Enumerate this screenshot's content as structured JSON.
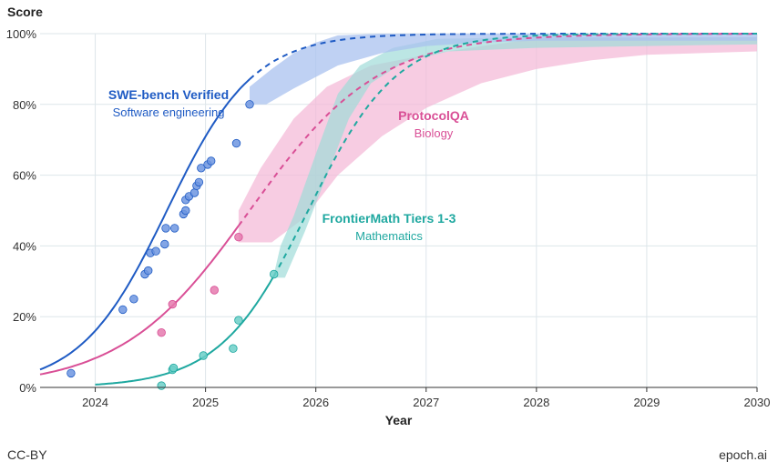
{
  "footer": {
    "license": "CC-BY",
    "source": "epoch.ai"
  },
  "chart_data": {
    "type": "line",
    "ylabel": "Score",
    "xlabel": "Year",
    "xlim": [
      2023.5,
      2030
    ],
    "ylim": [
      0,
      100
    ],
    "x_ticks": [
      2024,
      2025,
      2026,
      2027,
      2028,
      2029,
      2030
    ],
    "x_tick_labels": [
      "2024",
      "2025",
      "2026",
      "2027",
      "2028",
      "2029",
      "2030"
    ],
    "y_ticks": [
      0,
      20,
      40,
      60,
      80,
      100
    ],
    "y_tick_labels": [
      "0%",
      "20%",
      "40%",
      "60%",
      "80%",
      "100%"
    ],
    "grid": true,
    "series": [
      {
        "name": "SWE-bench Verified",
        "subtitle": "Software engineering",
        "color": "#1f5bc4",
        "point_color": "#6d95e0",
        "band_color": "#a9c2ef",
        "midpoint": 2024.65,
        "rate": 2.55,
        "fit_x": [
          2023.5,
          2025.4
        ],
        "projection_x": [
          2025.4,
          2030
        ],
        "points": [
          {
            "x": 2023.78,
            "y": 4
          },
          {
            "x": 2024.25,
            "y": 22
          },
          {
            "x": 2024.35,
            "y": 25
          },
          {
            "x": 2024.45,
            "y": 32
          },
          {
            "x": 2024.48,
            "y": 33
          },
          {
            "x": 2024.5,
            "y": 38
          },
          {
            "x": 2024.55,
            "y": 38.5
          },
          {
            "x": 2024.63,
            "y": 40.5
          },
          {
            "x": 2024.64,
            "y": 45
          },
          {
            "x": 2024.72,
            "y": 45
          },
          {
            "x": 2024.8,
            "y": 49
          },
          {
            "x": 2024.82,
            "y": 50
          },
          {
            "x": 2024.82,
            "y": 53
          },
          {
            "x": 2024.85,
            "y": 54
          },
          {
            "x": 2024.9,
            "y": 55
          },
          {
            "x": 2024.92,
            "y": 57
          },
          {
            "x": 2024.94,
            "y": 58
          },
          {
            "x": 2024.96,
            "y": 62
          },
          {
            "x": 2025.02,
            "y": 63
          },
          {
            "x": 2025.05,
            "y": 64
          },
          {
            "x": 2025.28,
            "y": 69
          },
          {
            "x": 2025.4,
            "y": 80
          }
        ],
        "band_lower": [
          [
            2025.4,
            80
          ],
          [
            2025.55,
            80
          ],
          [
            2025.8,
            84.5
          ],
          [
            2026.2,
            91
          ],
          [
            2026.6,
            94.5
          ],
          [
            2027,
            96.5
          ],
          [
            2027.5,
            97.5
          ],
          [
            2028,
            98
          ],
          [
            2029,
            98
          ],
          [
            2030,
            98
          ]
        ],
        "band_upper": [
          [
            2025.4,
            85
          ],
          [
            2025.6,
            90
          ],
          [
            2025.8,
            94.5
          ],
          [
            2026.0,
            97.5
          ],
          [
            2026.2,
            99.5
          ],
          [
            2026.6,
            100
          ],
          [
            2030,
            100
          ]
        ]
      },
      {
        "name": "ProtocolQA",
        "subtitle": "Biology",
        "color": "#d94f96",
        "point_color": "#e57aae",
        "band_color": "#f4b6d5",
        "midpoint": 2025.4,
        "rate": 1.72,
        "fit_x": [
          2023.5,
          2025.3
        ],
        "projection_x": [
          2025.3,
          2030
        ],
        "points": [
          {
            "x": 2024.6,
            "y": 15.5
          },
          {
            "x": 2024.7,
            "y": 23.5
          },
          {
            "x": 2025.08,
            "y": 27.5
          },
          {
            "x": 2025.3,
            "y": 42.5
          }
        ],
        "band_lower": [
          [
            2025.3,
            41
          ],
          [
            2025.6,
            41
          ],
          [
            2025.9,
            48
          ],
          [
            2026.2,
            60
          ],
          [
            2026.6,
            71
          ],
          [
            2027,
            79
          ],
          [
            2027.5,
            86
          ],
          [
            2028,
            90
          ],
          [
            2028.5,
            92.5
          ],
          [
            2029,
            94
          ],
          [
            2030,
            95
          ]
        ],
        "band_upper": [
          [
            2025.3,
            50
          ],
          [
            2025.5,
            62
          ],
          [
            2025.8,
            76
          ],
          [
            2026.1,
            85
          ],
          [
            2026.5,
            91
          ],
          [
            2027,
            94
          ],
          [
            2027.5,
            96.5
          ],
          [
            2028,
            98.5
          ],
          [
            2030,
            99
          ]
        ]
      },
      {
        "name": "FrontierMath Tiers 1-3",
        "subtitle": "Mathematics",
        "color": "#1fa8a0",
        "point_color": "#6ccfc8",
        "band_color": "#9fdcd8",
        "midpoint": 2025.93,
        "rate": 2.5,
        "fit_x": [
          2024.0,
          2025.62
        ],
        "projection_x": [
          2025.62,
          2030
        ],
        "points": [
          {
            "x": 2024.6,
            "y": 0.5
          },
          {
            "x": 2024.7,
            "y": 5
          },
          {
            "x": 2024.71,
            "y": 5.5
          },
          {
            "x": 2024.98,
            "y": 9
          },
          {
            "x": 2025.25,
            "y": 11
          },
          {
            "x": 2025.3,
            "y": 19
          },
          {
            "x": 2025.62,
            "y": 32
          }
        ],
        "band_lower": [
          [
            2025.62,
            31
          ],
          [
            2025.72,
            31
          ],
          [
            2025.9,
            44
          ],
          [
            2026.1,
            60
          ],
          [
            2026.3,
            76
          ],
          [
            2026.5,
            86
          ],
          [
            2026.8,
            92
          ],
          [
            2027.2,
            95
          ],
          [
            2028,
            96
          ],
          [
            2030,
            97
          ]
        ],
        "band_upper": [
          [
            2025.62,
            32
          ],
          [
            2025.68,
            40
          ],
          [
            2025.8,
            48.5
          ],
          [
            2026.0,
            66
          ],
          [
            2026.2,
            83
          ],
          [
            2026.4,
            91
          ],
          [
            2026.7,
            96
          ],
          [
            2027.1,
            98.5
          ],
          [
            2028,
            99
          ],
          [
            2030,
            99
          ]
        ]
      }
    ]
  }
}
